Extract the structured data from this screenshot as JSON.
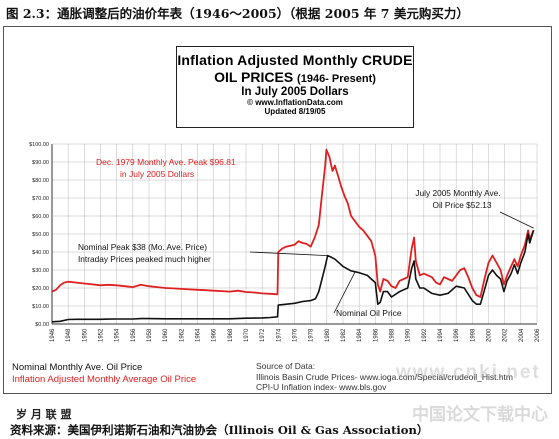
{
  "caption": "图 2.3：通胀调整后的油价年表（1946～2005）（根据 2005 年 7 美元购买力）",
  "title_box": {
    "line1": "Inflation Adjusted Monthly CRUDE",
    "line2_main": "OIL PRICES",
    "line2_sub": "(1946- Present)",
    "line3": "In July 2005 Dollars",
    "line4": "© www.InflationData.com",
    "line5": "Updated 8/19/05"
  },
  "annotations": {
    "peak_1979": [
      "Dec. 1979 Monthly Ave. Peak $96.81",
      "in July 2005 Dollars"
    ],
    "nominal_peak": [
      "Nominal Peak $38 (Mo. Ave. Price)",
      "Intraday Prices peaked much higher"
    ],
    "nominal_oil_price": "Nominal Oil Price",
    "july_2005": [
      "July 2005 Monthly Ave.",
      "Oil Price $52.13"
    ]
  },
  "legend": {
    "nominal": "Nominal Monthly Ave. Oil Price",
    "inflation": "Inflation Adjusted Monthly Average Oil Price"
  },
  "source": {
    "line1": "Source of Data:",
    "line2": "Illinois Basin Crude Prices-   www.ioga.com/Special/crudeoil_Hist.htm",
    "line3": "CPI-U Inflation index-    www.bls.gov"
  },
  "watermark": {
    "url": "www.cnki.net",
    "cn": "中国论文下载中心"
  },
  "stamp": "岁 月 联 盟",
  "source_note": "资料来源：美国伊利诺斯石油和汽油协会（Illinois Oil & Gas Association）",
  "colors": {
    "inflation": "#e02020",
    "nominal": "#111111",
    "grid": "#bbbbbb"
  },
  "chart_data": {
    "type": "line",
    "title": "Inflation Adjusted Monthly CRUDE OIL PRICES (1946- Present) In July 2005 Dollars",
    "xlabel": "",
    "ylabel": "",
    "xlim": [
      1946,
      2006
    ],
    "ylim": [
      0,
      100
    ],
    "x_ticks": [
      1946,
      1948,
      1950,
      1952,
      1954,
      1956,
      1958,
      1960,
      1962,
      1964,
      1966,
      1968,
      1970,
      1972,
      1974,
      1976,
      1978,
      1980,
      1982,
      1984,
      1986,
      1988,
      1990,
      1992,
      1994,
      1996,
      1998,
      2000,
      2002,
      2004,
      2006
    ],
    "y_ticks": [
      0,
      10,
      20,
      30,
      40,
      50,
      60,
      70,
      80,
      90,
      100
    ],
    "y_tick_labels": [
      "$0.00",
      "$10.00",
      "$20.00",
      "$30.00",
      "$40.00",
      "$50.00",
      "$60.00",
      "$70.00",
      "$80.00",
      "$90.00",
      "$100.00"
    ],
    "grid": true,
    "series": [
      {
        "name": "Inflation Adjusted Monthly Average Oil Price",
        "color": "#e02020",
        "points": [
          [
            1946,
            18
          ],
          [
            1946.5,
            19
          ],
          [
            1947,
            21.5
          ],
          [
            1947.5,
            23
          ],
          [
            1948,
            23.5
          ],
          [
            1949,
            23
          ],
          [
            1950,
            22.5
          ],
          [
            1951,
            22
          ],
          [
            1952,
            21.5
          ],
          [
            1953,
            21.8
          ],
          [
            1954,
            21.5
          ],
          [
            1955,
            21
          ],
          [
            1956,
            20.5
          ],
          [
            1957,
            21.8
          ],
          [
            1958,
            21
          ],
          [
            1959,
            20.5
          ],
          [
            1960,
            20
          ],
          [
            1961,
            19.8
          ],
          [
            1962,
            19.5
          ],
          [
            1963,
            19.2
          ],
          [
            1964,
            19
          ],
          [
            1965,
            18.8
          ],
          [
            1966,
            18.5
          ],
          [
            1967,
            18.3
          ],
          [
            1968,
            18
          ],
          [
            1969,
            18.5
          ],
          [
            1970,
            17.8
          ],
          [
            1971,
            17.5
          ],
          [
            1972,
            17
          ],
          [
            1973,
            16.8
          ],
          [
            1973.9,
            16.5
          ],
          [
            1974.0,
            40
          ],
          [
            1974.5,
            42
          ],
          [
            1975,
            43
          ],
          [
            1975.5,
            43.5
          ],
          [
            1976,
            44
          ],
          [
            1976.5,
            46
          ],
          [
            1977,
            45
          ],
          [
            1977.5,
            44.5
          ],
          [
            1978,
            43
          ],
          [
            1978.5,
            48
          ],
          [
            1979.0,
            55
          ],
          [
            1979.4,
            72
          ],
          [
            1979.8,
            88
          ],
          [
            1979.95,
            96.81
          ],
          [
            1980.3,
            93
          ],
          [
            1980.7,
            85
          ],
          [
            1981.0,
            88
          ],
          [
            1981.4,
            82
          ],
          [
            1981.8,
            76
          ],
          [
            1982.2,
            71
          ],
          [
            1982.6,
            67
          ],
          [
            1983,
            60
          ],
          [
            1983.5,
            57
          ],
          [
            1984,
            54
          ],
          [
            1984.5,
            52
          ],
          [
            1985,
            49
          ],
          [
            1985.5,
            46
          ],
          [
            1986.0,
            38
          ],
          [
            1986.3,
            22
          ],
          [
            1986.6,
            18
          ],
          [
            1987,
            25
          ],
          [
            1987.5,
            24
          ],
          [
            1988,
            21
          ],
          [
            1988.5,
            20
          ],
          [
            1989,
            24
          ],
          [
            1989.5,
            25
          ],
          [
            1990.0,
            26
          ],
          [
            1990.5,
            42
          ],
          [
            1990.8,
            48
          ],
          [
            1991.0,
            35
          ],
          [
            1991.5,
            27
          ],
          [
            1992,
            28
          ],
          [
            1992.5,
            27
          ],
          [
            1993,
            26
          ],
          [
            1993.5,
            23
          ],
          [
            1994,
            22
          ],
          [
            1994.5,
            26
          ],
          [
            1995,
            25
          ],
          [
            1995.5,
            24
          ],
          [
            1996,
            27
          ],
          [
            1996.5,
            30
          ],
          [
            1997,
            31
          ],
          [
            1997.5,
            26
          ],
          [
            1998,
            20
          ],
          [
            1998.5,
            16
          ],
          [
            1999.0,
            15
          ],
          [
            1999.5,
            25
          ],
          [
            2000,
            34
          ],
          [
            2000.5,
            38
          ],
          [
            2001,
            34
          ],
          [
            2001.5,
            30
          ],
          [
            2001.9,
            22
          ],
          [
            2002.3,
            27
          ],
          [
            2002.8,
            32
          ],
          [
            2003.2,
            36
          ],
          [
            2003.6,
            32
          ],
          [
            2004,
            38
          ],
          [
            2004.5,
            44
          ],
          [
            2004.9,
            52
          ],
          [
            2005.1,
            47
          ],
          [
            2005.58,
            52.13
          ]
        ]
      },
      {
        "name": "Nominal Monthly Ave. Oil Price",
        "color": "#111111",
        "points": [
          [
            1946,
            1.2
          ],
          [
            1947,
            1.5
          ],
          [
            1948,
            2.5
          ],
          [
            1949,
            2.6
          ],
          [
            1950,
            2.6
          ],
          [
            1952,
            2.6
          ],
          [
            1953,
            2.7
          ],
          [
            1954,
            2.8
          ],
          [
            1955,
            2.8
          ],
          [
            1956,
            2.8
          ],
          [
            1957,
            3.0
          ],
          [
            1958,
            3.0
          ],
          [
            1960,
            2.9
          ],
          [
            1962,
            2.9
          ],
          [
            1964,
            2.9
          ],
          [
            1966,
            2.9
          ],
          [
            1968,
            2.9
          ],
          [
            1970,
            3.2
          ],
          [
            1972,
            3.4
          ],
          [
            1973,
            3.6
          ],
          [
            1973.9,
            4.0
          ],
          [
            1974.0,
            10.5
          ],
          [
            1975,
            11
          ],
          [
            1976,
            11.5
          ],
          [
            1977,
            12.5
          ],
          [
            1978,
            13
          ],
          [
            1978.6,
            14
          ],
          [
            1979.0,
            18
          ],
          [
            1979.4,
            25
          ],
          [
            1979.8,
            32
          ],
          [
            1980.1,
            38
          ],
          [
            1980.6,
            37
          ],
          [
            1981.0,
            36
          ],
          [
            1981.5,
            34
          ],
          [
            1982,
            32
          ],
          [
            1983,
            29.5
          ],
          [
            1984,
            28.5
          ],
          [
            1985,
            27
          ],
          [
            1986.0,
            23
          ],
          [
            1986.3,
            11
          ],
          [
            1986.6,
            12
          ],
          [
            1987,
            18
          ],
          [
            1987.5,
            18
          ],
          [
            1988,
            15
          ],
          [
            1989,
            18
          ],
          [
            1989.5,
            19
          ],
          [
            1990.0,
            20
          ],
          [
            1990.5,
            31
          ],
          [
            1990.8,
            35
          ],
          [
            1991.0,
            25
          ],
          [
            1991.5,
            20
          ],
          [
            1992,
            20
          ],
          [
            1993,
            17
          ],
          [
            1994,
            16
          ],
          [
            1995,
            17
          ],
          [
            1996,
            21
          ],
          [
            1997,
            20
          ],
          [
            1998,
            13
          ],
          [
            1998.5,
            11
          ],
          [
            1999.0,
            11
          ],
          [
            1999.5,
            19
          ],
          [
            2000,
            27
          ],
          [
            2000.5,
            30
          ],
          [
            2001,
            27
          ],
          [
            2001.5,
            25
          ],
          [
            2001.9,
            18
          ],
          [
            2002.3,
            24
          ],
          [
            2002.8,
            28
          ],
          [
            2003.2,
            33
          ],
          [
            2003.6,
            28
          ],
          [
            2004,
            34
          ],
          [
            2004.5,
            40
          ],
          [
            2004.9,
            50
          ],
          [
            2005.1,
            45
          ],
          [
            2005.58,
            52.13
          ]
        ]
      }
    ]
  }
}
